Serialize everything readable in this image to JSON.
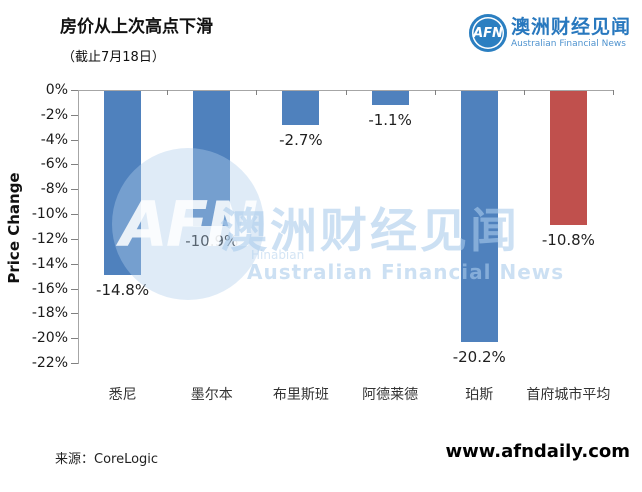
{
  "header": {
    "title": "房价从上次高点下滑",
    "subtitle": "（截止7月18日）"
  },
  "logo": {
    "abbr": "AFN",
    "name_cn": "澳洲财经见闻",
    "name_en": "Australian Financial News",
    "color": "#2b7fc1"
  },
  "watermark": {
    "abbr": "AFN",
    "text_cn": "澳洲财经见闻",
    "text_sub": "Hinabian",
    "text_en": "Australian Financial News"
  },
  "chart_data": {
    "type": "bar",
    "title": "房价从上次高点下滑",
    "subtitle": "（截止7月18日）",
    "categories": [
      "悉尼",
      "墨尔本",
      "布里斯班",
      "阿德莱德",
      "珀斯",
      "首府城市平均"
    ],
    "values": [
      -14.8,
      -10.9,
      -2.7,
      -1.1,
      -20.2,
      -10.8
    ],
    "value_labels": [
      "-14.8%",
      "-10.9%",
      "-2.7%",
      "-1.1%",
      "-20.2%",
      "-10.8%"
    ],
    "bar_colors": [
      "#4f81bd",
      "#4f81bd",
      "#4f81bd",
      "#4f81bd",
      "#4f81bd",
      "#c0504d"
    ],
    "xlabel": "",
    "ylabel": "Price Change",
    "ylim": [
      -22,
      0
    ],
    "ytick_step": 2,
    "yticks": [
      "0%",
      "-2%",
      "-4%",
      "-6%",
      "-8%",
      "-10%",
      "-12%",
      "-14%",
      "-16%",
      "-18%",
      "-20%",
      "-22%"
    ],
    "grid": false,
    "legend": null
  },
  "footer": {
    "source": "来源：CoreLogic",
    "website": "www.afndaily.com"
  }
}
